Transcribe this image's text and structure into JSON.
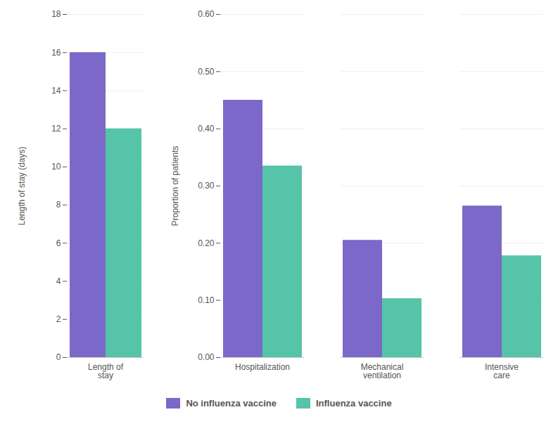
{
  "chart_data": [
    {
      "type": "bar",
      "categories": [
        "Length of\nstay"
      ],
      "series": [
        {
          "name": "No influenza vaccine",
          "color": "#7B68C8",
          "values": [
            16
          ]
        },
        {
          "name": "Influenza vaccine",
          "color": "#55C4A8",
          "values": [
            12
          ]
        }
      ],
      "ylabel": "Length of stay (days)",
      "ylim": [
        0,
        18
      ],
      "yticks": [
        0,
        2,
        4,
        6,
        8,
        10,
        12,
        14,
        16,
        18
      ],
      "grid": true,
      "legend": "bottom"
    },
    {
      "type": "bar",
      "categories": [
        "Hospitalization",
        "Mechanical\nventilation",
        "Intensive\ncare"
      ],
      "series": [
        {
          "name": "No influenza vaccine",
          "color": "#7B68C8",
          "values": [
            0.45,
            0.205,
            0.265
          ]
        },
        {
          "name": "Influenza vaccine",
          "color": "#55C4A8",
          "values": [
            0.335,
            0.103,
            0.178
          ]
        }
      ],
      "ylabel": "Proportion of patients",
      "ylim": [
        0,
        0.6
      ],
      "yticks": [
        {
          "value": 0.0,
          "label": "0.00"
        },
        {
          "value": 0.1,
          "label": "0.10"
        },
        {
          "value": 0.2,
          "label": "0.20"
        },
        {
          "value": 0.3,
          "label": "0.30"
        },
        {
          "value": 0.4,
          "label": "0.40"
        },
        {
          "value": 0.5,
          "label": "0.50"
        },
        {
          "value": 0.6,
          "label": "0.60"
        }
      ],
      "grid": true,
      "legend": "bottom"
    }
  ]
}
